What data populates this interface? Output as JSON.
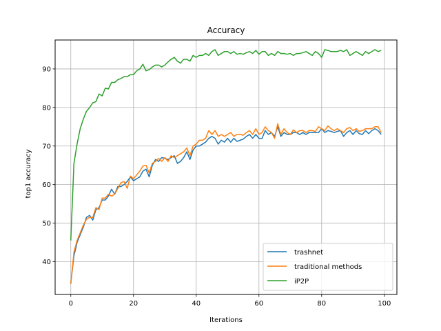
{
  "chart_data": {
    "type": "line",
    "title": "Accuracy",
    "xlabel": "Iterations",
    "ylabel": "top1 accuracy",
    "xlim": [
      -5,
      104
    ],
    "ylim": [
      31.5,
      97.5
    ],
    "xticks": [
      0,
      20,
      40,
      60,
      80,
      100
    ],
    "yticks": [
      40,
      50,
      60,
      70,
      80,
      90
    ],
    "grid": true,
    "legend_position": "lower-right",
    "series": [
      {
        "name": "trashnet",
        "color": "#1f77b4",
        "x": [
          0,
          1,
          2,
          3,
          4,
          5,
          6,
          7,
          8,
          9,
          10,
          11,
          12,
          13,
          14,
          15,
          16,
          17,
          18,
          19,
          20,
          21,
          22,
          23,
          24,
          25,
          26,
          27,
          28,
          29,
          30,
          31,
          32,
          33,
          34,
          35,
          36,
          37,
          38,
          39,
          40,
          41,
          42,
          43,
          44,
          45,
          46,
          47,
          48,
          49,
          50,
          51,
          52,
          53,
          54,
          55,
          56,
          57,
          58,
          59,
          60,
          61,
          62,
          63,
          64,
          65,
          66,
          67,
          68,
          69,
          70,
          71,
          72,
          73,
          74,
          75,
          76,
          77,
          78,
          79,
          80,
          81,
          82,
          83,
          84,
          85,
          86,
          87,
          88,
          89,
          90,
          91,
          92,
          93,
          94,
          95,
          96,
          97,
          98,
          99
        ],
        "values": [
          34.5,
          41.5,
          45.0,
          47.0,
          49.0,
          51.5,
          52.0,
          50.8,
          53.5,
          54.0,
          56.0,
          56.0,
          57.0,
          58.8,
          57.5,
          59.5,
          59.5,
          60.0,
          60.8,
          62.0,
          61.0,
          61.5,
          62.0,
          63.5,
          64.0,
          62.0,
          65.0,
          66.5,
          66.0,
          67.0,
          66.8,
          66.5,
          67.0,
          67.5,
          65.5,
          66.0,
          67.0,
          68.5,
          66.5,
          69.0,
          70.0,
          70.0,
          70.5,
          71.0,
          72.0,
          72.5,
          72.0,
          70.5,
          71.5,
          71.0,
          72.0,
          71.0,
          72.0,
          71.2,
          71.5,
          71.8,
          72.5,
          73.0,
          72.0,
          73.0,
          72.0,
          72.0,
          74.0,
          73.0,
          73.5,
          72.5,
          75.0,
          72.5,
          73.5,
          73.0,
          73.0,
          73.5,
          73.5,
          73.0,
          73.5,
          73.0,
          73.5,
          73.5,
          73.5,
          73.5,
          74.5,
          73.5,
          74.0,
          73.8,
          73.5,
          73.8,
          74.0,
          72.5,
          73.5,
          74.0,
          73.0,
          74.0,
          73.2,
          73.0,
          74.0,
          73.2,
          74.0,
          74.5,
          74.0,
          73.0
        ]
      },
      {
        "name": "traditional methods",
        "color": "#ff7f0e",
        "x": [
          0,
          1,
          2,
          3,
          4,
          5,
          6,
          7,
          8,
          9,
          10,
          11,
          12,
          13,
          14,
          15,
          16,
          17,
          18,
          19,
          20,
          21,
          22,
          23,
          24,
          25,
          26,
          27,
          28,
          29,
          30,
          31,
          32,
          33,
          34,
          35,
          36,
          37,
          38,
          39,
          40,
          41,
          42,
          43,
          44,
          45,
          46,
          47,
          48,
          49,
          50,
          51,
          52,
          53,
          54,
          55,
          56,
          57,
          58,
          59,
          60,
          61,
          62,
          63,
          64,
          65,
          66,
          67,
          68,
          69,
          70,
          71,
          72,
          73,
          74,
          75,
          76,
          77,
          78,
          79,
          80,
          81,
          82,
          83,
          84,
          85,
          86,
          87,
          88,
          89,
          90,
          91,
          92,
          93,
          94,
          95,
          96,
          97,
          98,
          99
        ],
        "values": [
          34.2,
          42.5,
          45.5,
          47.5,
          49.5,
          51.0,
          51.5,
          51.5,
          54.0,
          53.5,
          56.5,
          56.5,
          57.5,
          57.0,
          57.5,
          59.0,
          60.5,
          60.8,
          59.0,
          62.2,
          61.5,
          62.5,
          63.5,
          64.8,
          65.0,
          63.0,
          65.5,
          66.0,
          66.8,
          66.0,
          67.0,
          66.0,
          67.5,
          67.0,
          67.5,
          68.0,
          68.5,
          69.5,
          67.5,
          70.0,
          70.5,
          71.5,
          71.5,
          72.0,
          74.0,
          73.0,
          74.0,
          72.5,
          73.0,
          72.5,
          73.0,
          73.5,
          72.5,
          73.0,
          73.0,
          72.8,
          73.5,
          74.0,
          73.0,
          74.5,
          73.0,
          73.5,
          75.0,
          74.0,
          73.5,
          72.0,
          75.8,
          73.0,
          74.5,
          73.5,
          73.0,
          74.2,
          73.5,
          74.0,
          74.0,
          73.5,
          74.0,
          74.0,
          73.8,
          75.0,
          74.5,
          74.0,
          75.2,
          74.5,
          74.0,
          74.5,
          74.0,
          73.5,
          74.5,
          74.8,
          74.0,
          74.5,
          73.8,
          74.0,
          74.5,
          74.5,
          74.5,
          75.0,
          75.0,
          73.5
        ]
      },
      {
        "name": "iP2P",
        "color": "#2ca02c",
        "x": [
          0,
          1,
          2,
          3,
          4,
          5,
          6,
          7,
          8,
          9,
          10,
          11,
          12,
          13,
          14,
          15,
          16,
          17,
          18,
          19,
          20,
          21,
          22,
          23,
          24,
          25,
          26,
          27,
          28,
          29,
          30,
          31,
          32,
          33,
          34,
          35,
          36,
          37,
          38,
          39,
          40,
          41,
          42,
          43,
          44,
          45,
          46,
          47,
          48,
          49,
          50,
          51,
          52,
          53,
          54,
          55,
          56,
          57,
          58,
          59,
          60,
          61,
          62,
          63,
          64,
          65,
          66,
          67,
          68,
          69,
          70,
          71,
          72,
          73,
          74,
          75,
          76,
          77,
          78,
          79,
          80,
          81,
          82,
          83,
          84,
          85,
          86,
          87,
          88,
          89,
          90,
          91,
          92,
          93,
          94,
          95,
          96,
          97,
          98,
          99
        ],
        "values": [
          45.5,
          65.5,
          70.5,
          74.5,
          77.0,
          79.0,
          80.0,
          81.2,
          81.5,
          83.5,
          83.0,
          85.0,
          84.8,
          86.5,
          86.5,
          87.2,
          87.5,
          88.0,
          88.0,
          88.5,
          88.5,
          89.5,
          90.0,
          91.2,
          89.5,
          89.8,
          90.5,
          91.0,
          91.0,
          90.5,
          91.0,
          91.8,
          92.5,
          93.0,
          92.0,
          91.5,
          92.5,
          92.5,
          92.0,
          93.5,
          93.0,
          93.5,
          93.5,
          94.0,
          93.5,
          94.5,
          95.0,
          93.5,
          94.0,
          94.5,
          94.5,
          94.0,
          94.5,
          93.8,
          94.0,
          93.8,
          94.2,
          94.5,
          94.0,
          94.8,
          93.8,
          94.5,
          94.5,
          93.5,
          94.0,
          93.5,
          94.5,
          94.0,
          94.0,
          93.8,
          94.0,
          93.5,
          94.0,
          94.0,
          94.2,
          94.5,
          94.0,
          93.5,
          94.5,
          94.0,
          93.0,
          95.0,
          94.8,
          94.5,
          94.5,
          94.5,
          94.8,
          94.5,
          95.0,
          93.5,
          94.0,
          94.5,
          94.0,
          93.5,
          94.5,
          94.0,
          94.5,
          95.0,
          94.5,
          94.8
        ]
      }
    ]
  }
}
